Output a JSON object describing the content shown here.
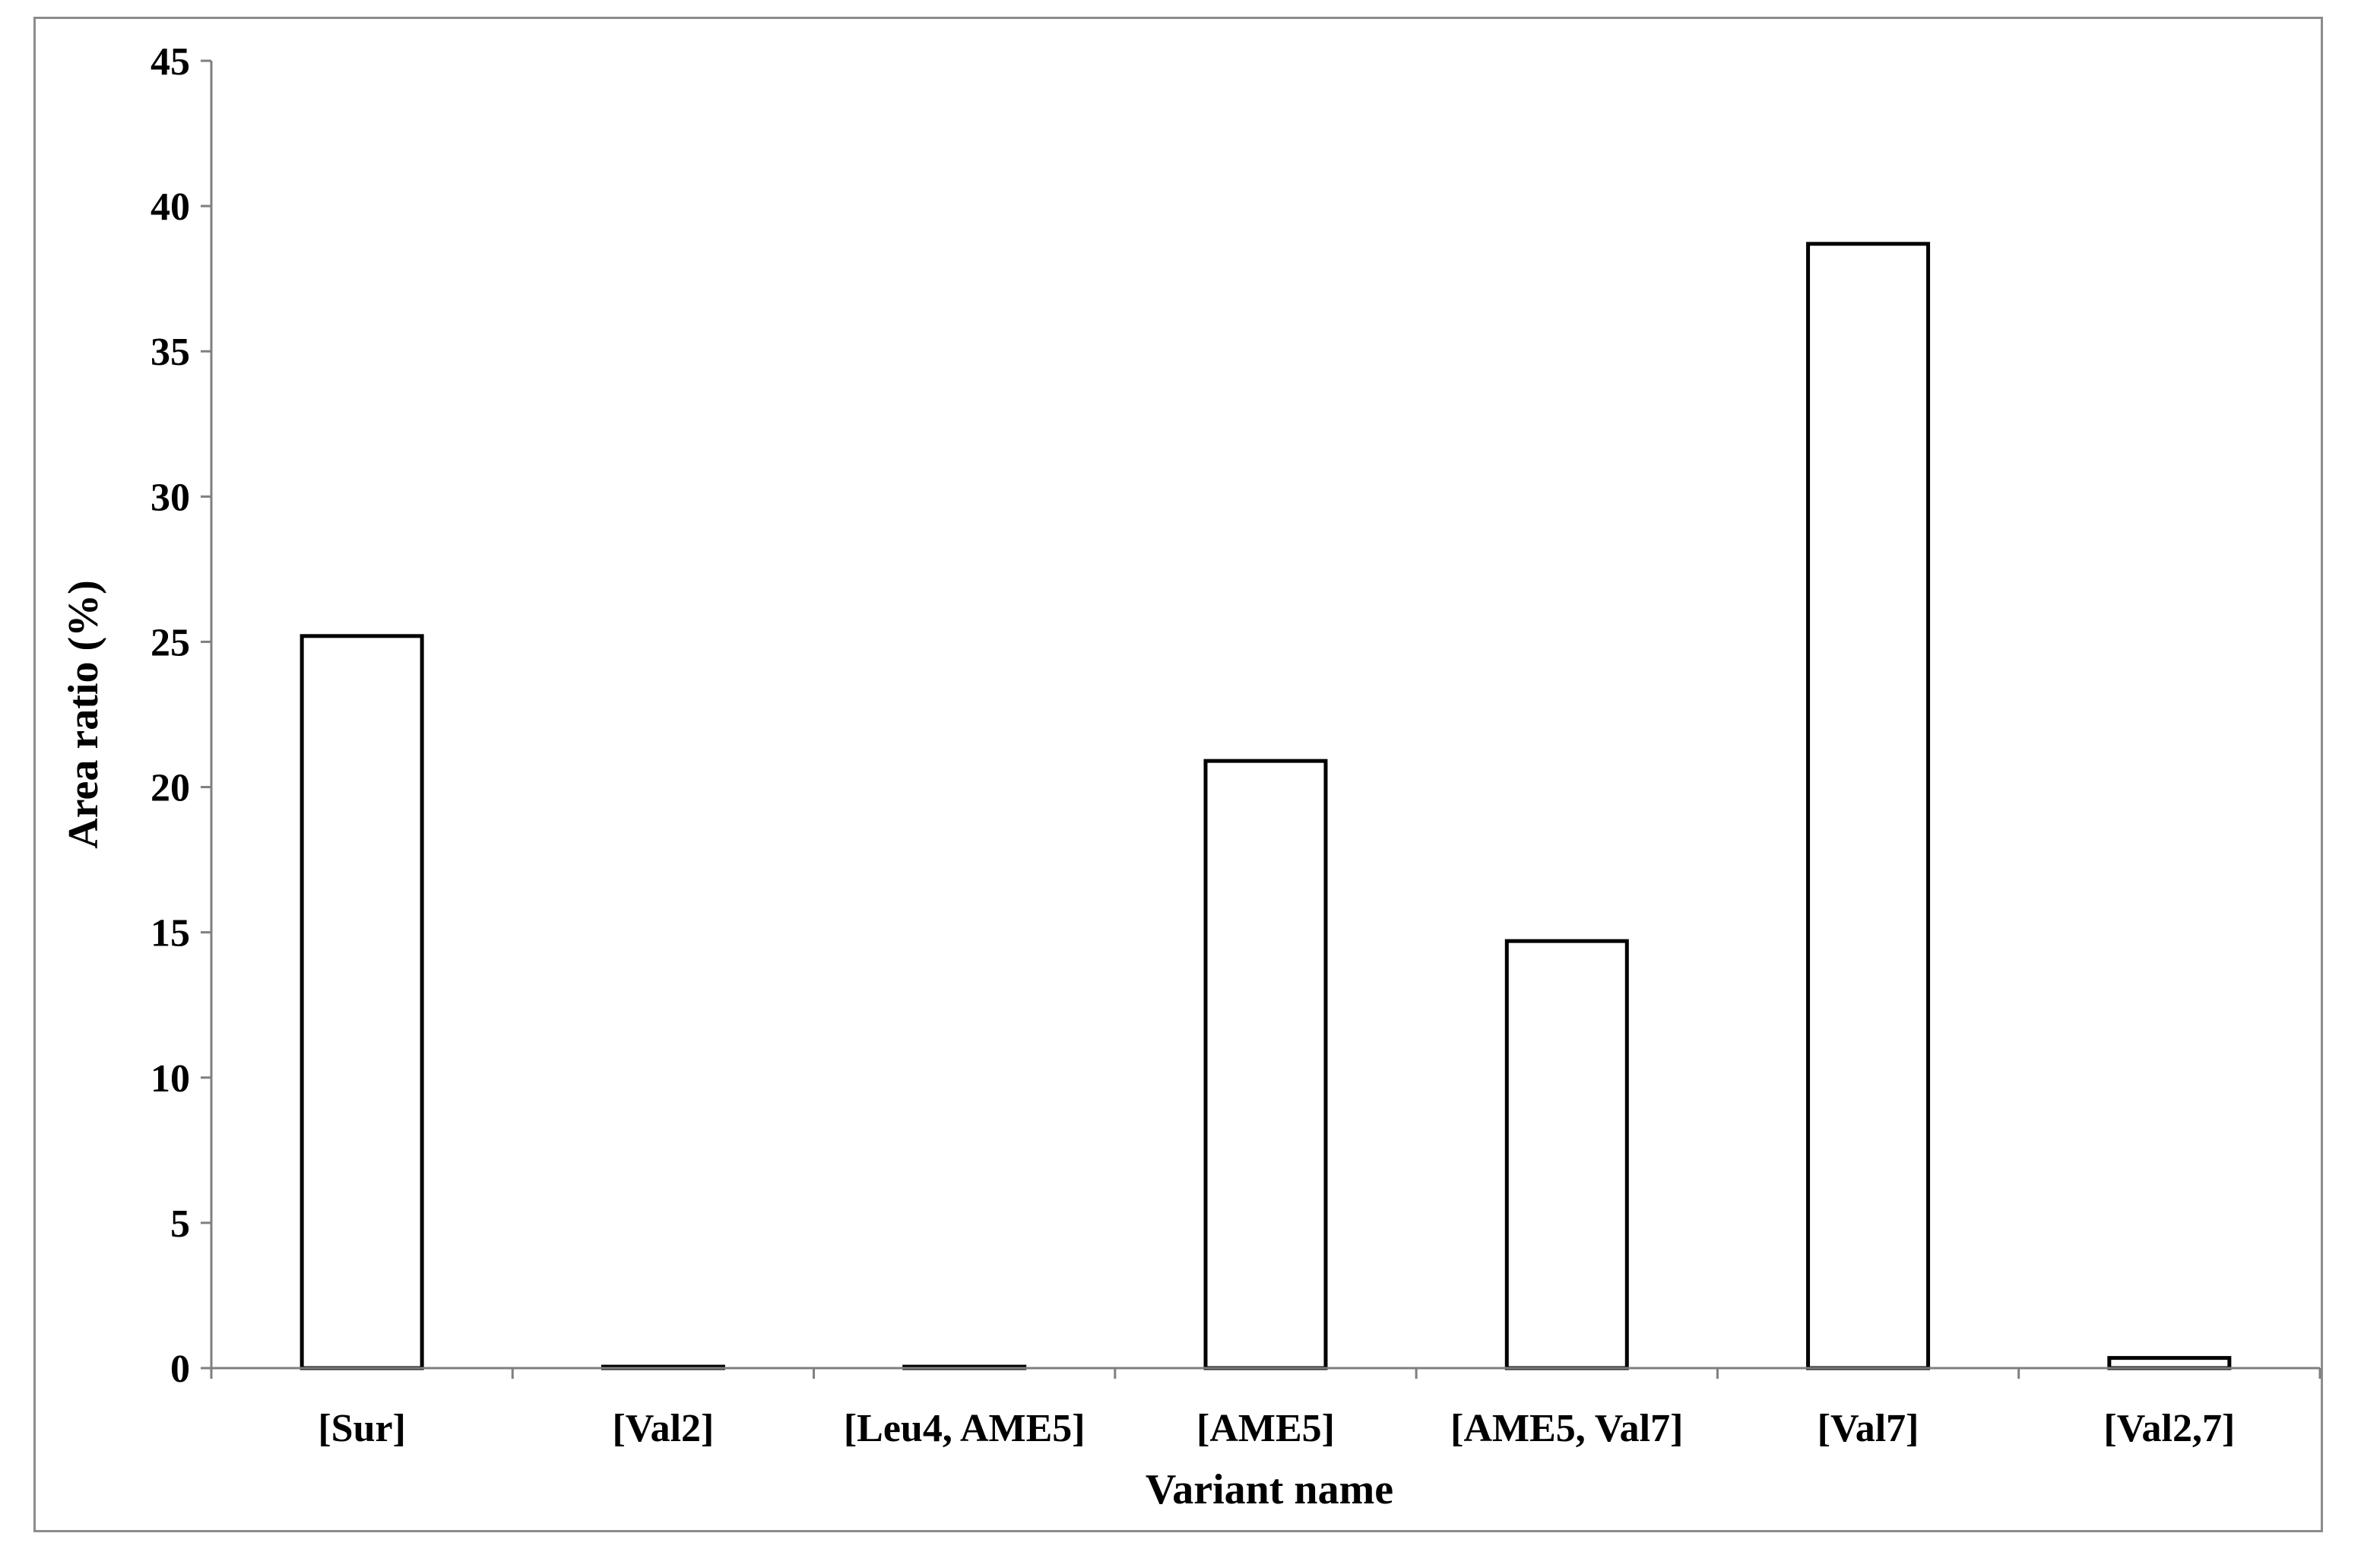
{
  "chart_data": {
    "type": "bar",
    "categories": [
      "[Sur]",
      "[Val2]",
      "[Leu4, AME5]",
      "[AME5]",
      "[AME5, Val7]",
      "[Val7]",
      "[Val2,7]"
    ],
    "values": [
      25.2,
      0.05,
      0.05,
      20.9,
      14.7,
      38.7,
      0.35
    ],
    "xlabel": "Variant name",
    "ylabel": "Area ratio (%)",
    "ylim": [
      0,
      45
    ],
    "yticks": [
      0,
      5,
      10,
      15,
      20,
      25,
      30,
      35,
      40,
      45
    ],
    "grid": false,
    "legend": "none",
    "bar_fill": "#ffffff",
    "bar_stroke": "#000000",
    "axis_color": "#7f7f7f",
    "frame_color": "#8c8c8c"
  }
}
